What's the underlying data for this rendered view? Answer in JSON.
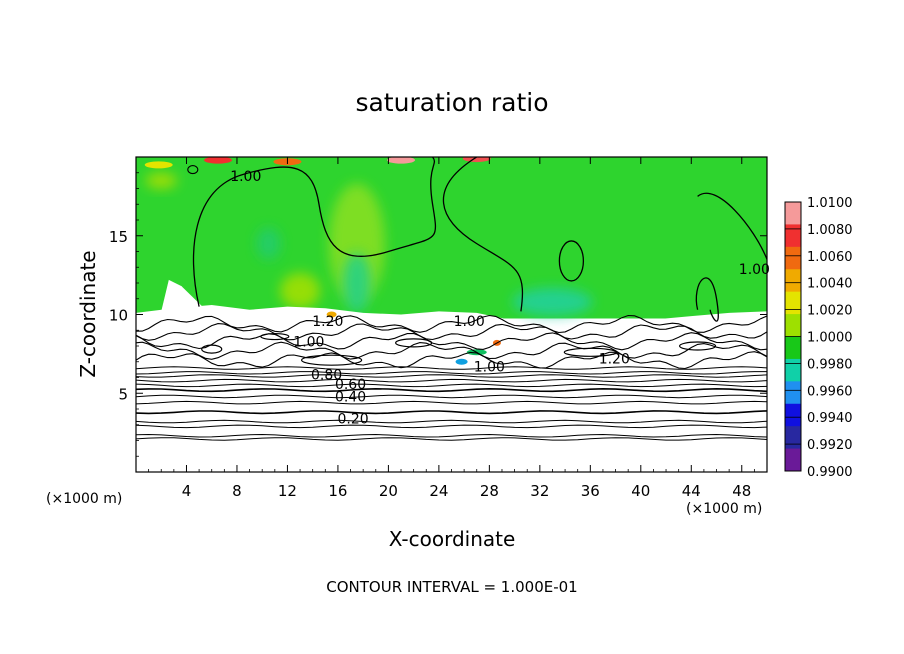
{
  "chart_data": {
    "type": "heatmap",
    "title": "saturation ratio",
    "xlabel": "X-coordinate",
    "ylabel": "Z-coordinate",
    "x_unit_label": "(×1000 m)",
    "x_ticks": [
      4,
      8,
      12,
      16,
      20,
      24,
      28,
      32,
      36,
      40,
      44,
      48
    ],
    "y_ticks": [
      5,
      10,
      15
    ],
    "xlim": [
      0,
      50
    ],
    "ylim": [
      0,
      20
    ],
    "contour_note": "CONTOUR INTERVAL = 1.000E-01",
    "colorbar": {
      "labels": [
        "1.0100",
        "1.0080",
        "1.0060",
        "1.0040",
        "1.0020",
        "1.0000",
        "0.9980",
        "0.9960",
        "0.9940",
        "0.9920",
        "0.9900"
      ],
      "colors": [
        "#f59a9a",
        "#f03030",
        "#f06a10",
        "#f0aa00",
        "#e4e400",
        "#9ee000",
        "#18c818",
        "#10d0a8",
        "#2090f0",
        "#1010e0",
        "#2828a0",
        "#6a1a98"
      ]
    },
    "contour_labels": [
      {
        "text": "1.00",
        "x": 8.7,
        "z": 18.8
      },
      {
        "text": "1.00",
        "x": 49.0,
        "z": 12.9
      },
      {
        "text": "1.00",
        "x": 26.4,
        "z": 9.6
      },
      {
        "text": "1.00",
        "x": 13.7,
        "z": 8.3
      },
      {
        "text": "1.20",
        "x": 15.2,
        "z": 9.6
      },
      {
        "text": "1.00",
        "x": 28.0,
        "z": 6.7
      },
      {
        "text": "1.20",
        "x": 37.9,
        "z": 7.2
      },
      {
        "text": "0.80",
        "x": 15.1,
        "z": 6.2
      },
      {
        "text": "0.60",
        "x": 17.0,
        "z": 5.6
      },
      {
        "text": "0.40",
        "x": 17.0,
        "z": 4.8
      },
      {
        "text": "0.20",
        "x": 17.2,
        "z": 3.4
      }
    ],
    "dry_layers_z": [
      2.1,
      2.3,
      2.9,
      3.2,
      3.8,
      4.4,
      4.8,
      5.2,
      5.5,
      5.8,
      6.1,
      6.3,
      6.6
    ],
    "cloud_base_z": 10.0
  }
}
